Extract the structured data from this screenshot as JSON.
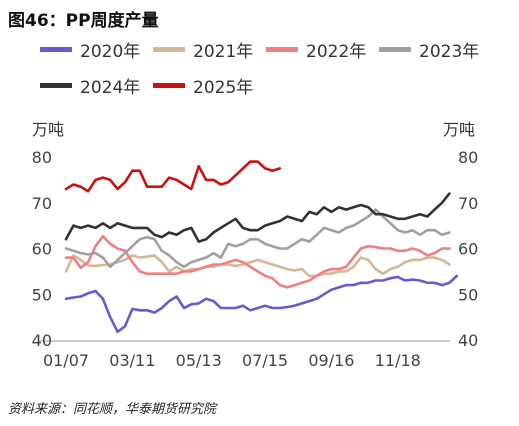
{
  "title": "图46：PP周度产量",
  "source": "资料来源：同花顺，华泰期货研究院",
  "chart_data": {
    "type": "line",
    "yunit_left": "万吨",
    "yunit_right": "万吨",
    "ylim": [
      40,
      80
    ],
    "yticks": [
      40,
      50,
      60,
      70,
      80
    ],
    "xlim": [
      1,
      52
    ],
    "xticks": [
      {
        "week": 1,
        "label": "01/07"
      },
      {
        "week": 10,
        "label": "03/11"
      },
      {
        "week": 19,
        "label": "05/13"
      },
      {
        "week": 28,
        "label": "07/15"
      },
      {
        "week": 37,
        "label": "09/16"
      },
      {
        "week": 46,
        "label": "11/18"
      }
    ],
    "series": [
      {
        "name": "2020年",
        "color": "#6a5acd",
        "values": [
          49,
          49.3,
          49.5,
          50.2,
          50.7,
          49,
          45,
          41.8,
          43,
          46.8,
          46.5,
          46.5,
          46,
          47,
          48.5,
          49.5,
          47,
          47.8,
          48,
          49,
          48.5,
          47,
          47,
          47,
          47.5,
          46.5,
          47,
          47.5,
          47,
          47,
          47.2,
          47.5,
          48,
          48.5,
          49,
          50,
          51,
          51.5,
          52,
          52,
          52.5,
          52.5,
          53,
          53,
          53.5,
          53.8,
          53,
          53.2,
          53,
          52.5,
          52.5,
          52,
          52.5,
          54
        ]
      },
      {
        "name": "2021年",
        "color": "#d4b896",
        "values": [
          55,
          58.5,
          57.5,
          56.3,
          56.2,
          56.4,
          56.5,
          57,
          57.5,
          58.5,
          58,
          58.2,
          58.5,
          57,
          55,
          56,
          55,
          55.5,
          55.5,
          56,
          56,
          56.5,
          56.5,
          56.2,
          56.5,
          57,
          57.5,
          57,
          56.5,
          56,
          55.5,
          55.2,
          55.5,
          54,
          54,
          54.5,
          54.5,
          55,
          55,
          56,
          58,
          57.5,
          55.5,
          54.5,
          55.5,
          56,
          57,
          57.5,
          57.5,
          58,
          58,
          57.5,
          56.5
        ]
      },
      {
        "name": "2022年",
        "color": "#f08080",
        "values": [
          58,
          58,
          55.8,
          57,
          60.5,
          62.7,
          61,
          60,
          59.5,
          57,
          55,
          54.5,
          54.5,
          54.5,
          54.5,
          54.5,
          55,
          55,
          55.5,
          56,
          56.5,
          56.5,
          57,
          57.5,
          57,
          56,
          55,
          54,
          53.5,
          52,
          51.5,
          52,
          52.5,
          53,
          54,
          55,
          55.5,
          55.5,
          56,
          58,
          60,
          60.5,
          60.3,
          60,
          60,
          59.5,
          59.5,
          60,
          59.5,
          58.5,
          59,
          60,
          60
        ]
      },
      {
        "name": "2023年",
        "color": "#a0a0a0",
        "values": [
          60,
          59.5,
          59,
          58.7,
          59,
          58,
          56,
          57.5,
          59,
          60.5,
          62,
          62.5,
          62,
          59.5,
          58.5,
          57,
          56,
          57,
          57.5,
          58,
          59,
          58,
          61,
          60.5,
          61,
          62,
          62,
          61,
          60.5,
          60,
          60,
          61,
          62,
          61.5,
          63,
          64.5,
          64,
          63.5,
          64.5,
          65,
          66,
          67,
          68.5,
          67,
          65.5,
          64,
          63.5,
          64,
          63,
          64,
          64,
          63,
          63.5
        ]
      },
      {
        "name": "2024年",
        "color": "#333333",
        "values": [
          62,
          65,
          64.5,
          65,
          64.5,
          65.5,
          64.5,
          65.5,
          65,
          64.5,
          64.5,
          64.5,
          63,
          62.5,
          63.5,
          63,
          64,
          64.5,
          61.5,
          62,
          63.5,
          64.5,
          65.5,
          66.5,
          64.5,
          64,
          64,
          65,
          65.5,
          66,
          67,
          66.5,
          66,
          68,
          67.5,
          69,
          68,
          69,
          68.5,
          69,
          69.5,
          69,
          67.5,
          67.5,
          67,
          66.5,
          66.5,
          67,
          67.5,
          67,
          68.5,
          70,
          72
        ]
      },
      {
        "name": "2025年",
        "color": "#cc1111",
        "values": [
          73,
          74,
          73.5,
          72.5,
          75,
          75.5,
          75,
          73,
          74.5,
          77,
          77,
          73.5,
          73.5,
          73.5,
          75.5,
          75,
          74,
          73,
          78,
          75,
          75,
          74,
          74.5,
          76,
          77.5,
          79,
          79,
          77.5,
          77,
          77.5
        ]
      }
    ]
  }
}
